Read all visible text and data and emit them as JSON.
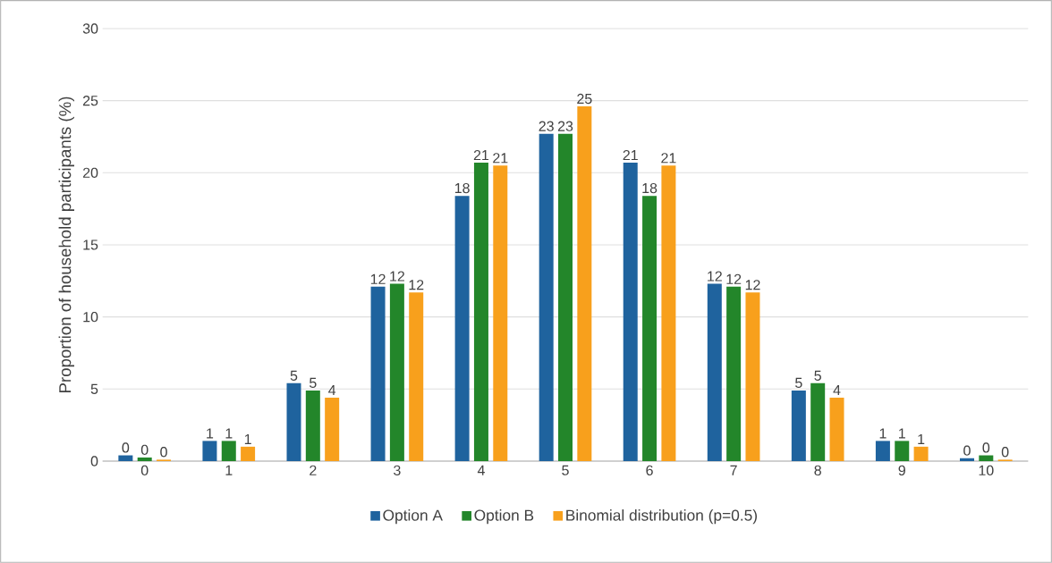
{
  "chart_data": {
    "type": "bar",
    "ylabel": "Proportion of household participants (%)",
    "categories": [
      "0",
      "1",
      "2",
      "3",
      "4",
      "5",
      "6",
      "7",
      "8",
      "9",
      "10"
    ],
    "series": [
      {
        "name": "Option A",
        "color": "#1f639e",
        "values": [
          0.4,
          1.4,
          5.4,
          12.1,
          18.4,
          22.7,
          20.7,
          12.3,
          4.9,
          1.4,
          0.2
        ],
        "value_labels": [
          "0",
          "1",
          "5",
          "12",
          "18",
          "23",
          "21",
          "12",
          "5",
          "1",
          "0"
        ]
      },
      {
        "name": "Option B",
        "color": "#23862a",
        "values": [
          0.25,
          1.4,
          4.9,
          12.3,
          20.7,
          22.7,
          18.4,
          12.1,
          5.4,
          1.4,
          0.4
        ],
        "value_labels": [
          "0",
          "1",
          "5",
          "12",
          "21",
          "23",
          "18",
          "12",
          "5",
          "1",
          "0"
        ]
      },
      {
        "name": "Binomial distribution (p=0.5)",
        "color": "#f8a01c",
        "values": [
          0.1,
          1.0,
          4.4,
          11.7,
          20.5,
          24.6,
          20.5,
          11.7,
          4.4,
          1.0,
          0.1
        ],
        "value_labels": [
          "0",
          "1",
          "4",
          "12",
          "21",
          "25",
          "21",
          "12",
          "4",
          "1",
          "0"
        ]
      }
    ],
    "ylim": [
      0,
      30
    ],
    "yticks": [
      0,
      5,
      10,
      15,
      20,
      25,
      30
    ],
    "grid": "y",
    "legend": "bottom"
  }
}
